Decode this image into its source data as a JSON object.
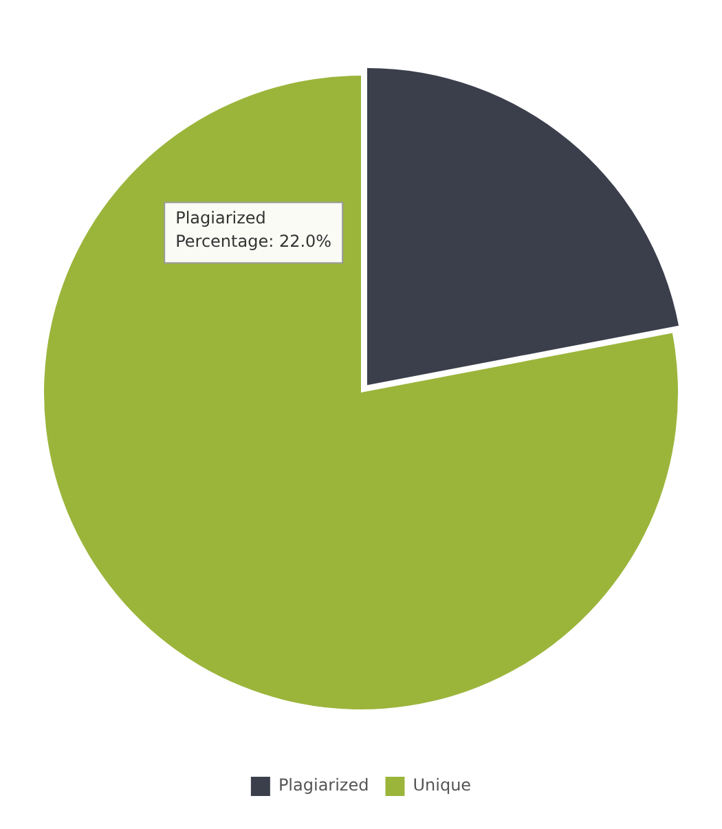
{
  "chart_data": {
    "type": "pie",
    "categories": [
      "Plagiarized",
      "Unique"
    ],
    "values": [
      22,
      78
    ],
    "colors": [
      "#3b3f4c",
      "#9bb53b"
    ],
    "legend": "bottom",
    "annotations": [
      "Plagiarized",
      "Percentage: 22.0%"
    ]
  }
}
